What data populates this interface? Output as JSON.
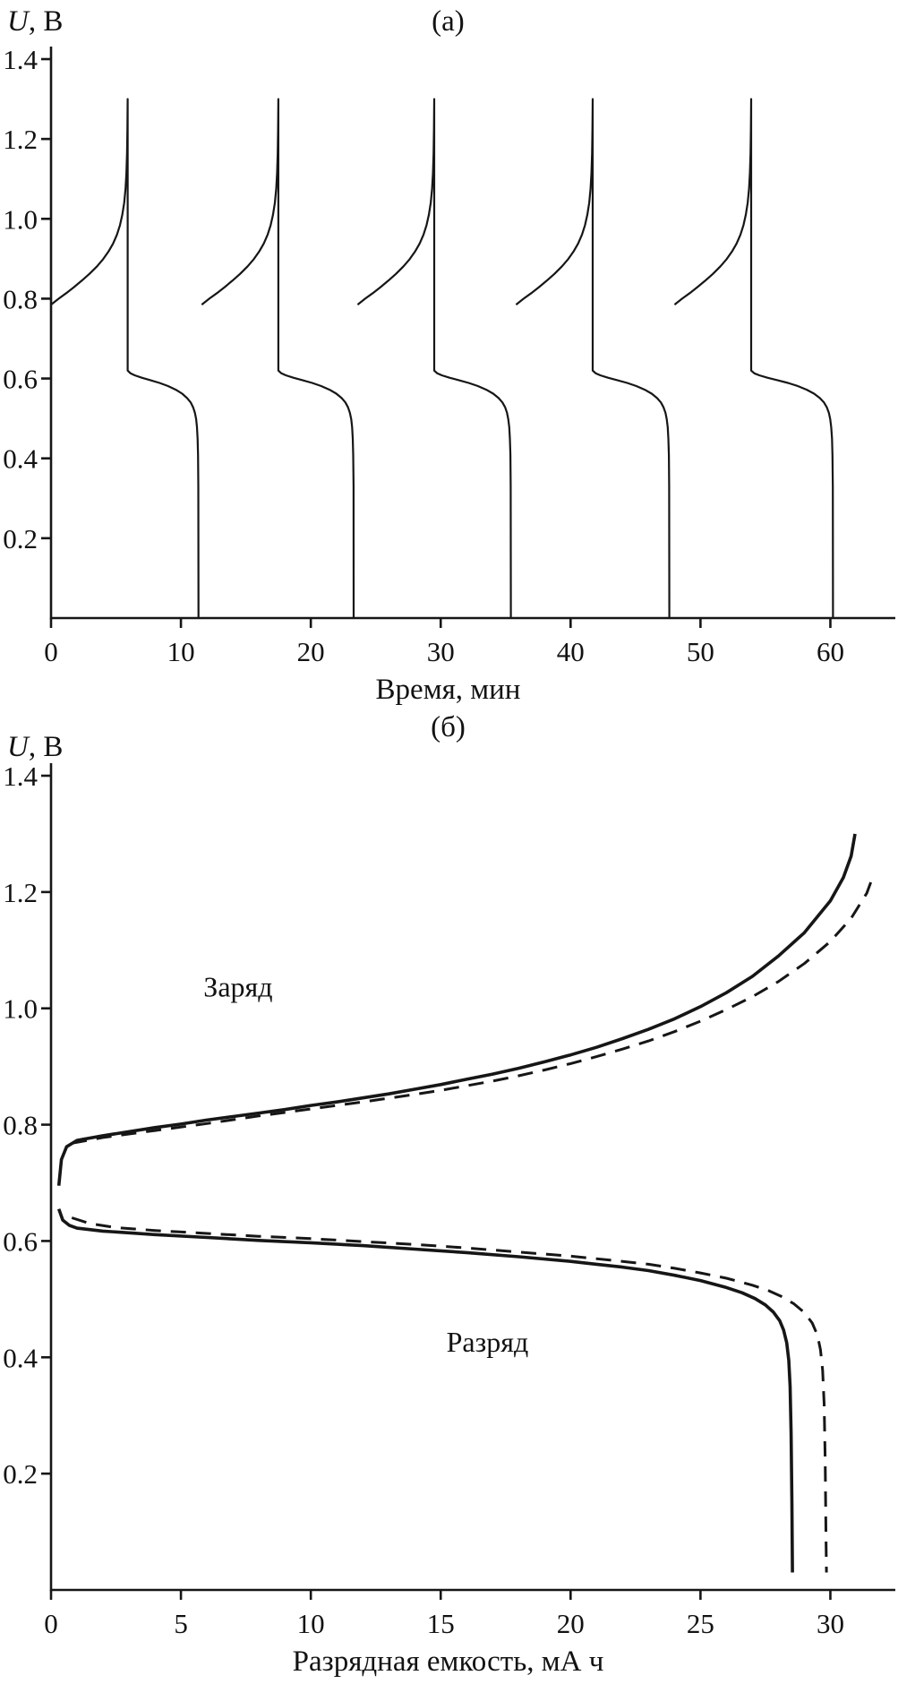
{
  "page": {
    "background": "#ffffff",
    "line_color": "#161616"
  },
  "chart_data": [
    {
      "id": "a",
      "type": "line",
      "title": "(а)",
      "ylabel_italic": "U",
      "ylabel_rest": ", В",
      "xlabel": "Время, мин",
      "x_ticks": [
        0,
        10,
        20,
        30,
        40,
        50,
        60
      ],
      "y_ticks": [
        0.2,
        0.4,
        0.6,
        0.8,
        1.0,
        1.2,
        1.4
      ],
      "xlim": [
        0,
        65
      ],
      "ylim": [
        0,
        1.4
      ],
      "legend": "none",
      "grid": false,
      "peak_voltage": 1.3,
      "cycles": [
        {
          "charge_start": 0.0,
          "peak": 5.9,
          "end": 11.35
        },
        {
          "charge_start": 11.6,
          "peak": 17.5,
          "end": 23.3
        },
        {
          "charge_start": 23.6,
          "peak": 29.5,
          "end": 35.4
        },
        {
          "charge_start": 35.8,
          "peak": 41.7,
          "end": 47.6
        },
        {
          "charge_start": 48.0,
          "peak": 53.9,
          "end": 60.2
        }
      ],
      "charge_profile": [
        [
          0.0,
          0.785
        ],
        [
          0.1,
          0.8
        ],
        [
          0.2,
          0.814
        ],
        [
          0.3,
          0.829
        ],
        [
          0.4,
          0.845
        ],
        [
          0.5,
          0.862
        ],
        [
          0.6,
          0.881
        ],
        [
          0.68,
          0.899
        ],
        [
          0.75,
          0.918
        ],
        [
          0.81,
          0.938
        ],
        [
          0.86,
          0.96
        ],
        [
          0.9,
          0.984
        ],
        [
          0.93,
          1.01
        ],
        [
          0.955,
          1.04
        ],
        [
          0.972,
          1.075
        ],
        [
          0.984,
          1.115
        ],
        [
          0.992,
          1.165
        ],
        [
          0.997,
          1.225
        ],
        [
          1.0,
          1.3
        ]
      ],
      "discharge_profile": [
        [
          0.0,
          0.62
        ],
        [
          0.04,
          0.613
        ],
        [
          0.1,
          0.608
        ],
        [
          0.2,
          0.602
        ],
        [
          0.32,
          0.596
        ],
        [
          0.45,
          0.589
        ],
        [
          0.57,
          0.581
        ],
        [
          0.68,
          0.572
        ],
        [
          0.77,
          0.562
        ],
        [
          0.84,
          0.551
        ],
        [
          0.89,
          0.54
        ],
        [
          0.925,
          0.528
        ],
        [
          0.95,
          0.514
        ],
        [
          0.967,
          0.498
        ],
        [
          0.979,
          0.478
        ],
        [
          0.988,
          0.45
        ],
        [
          0.994,
          0.408
        ],
        [
          0.998,
          0.33
        ],
        [
          1.0,
          0.0
        ]
      ]
    },
    {
      "id": "b",
      "type": "line",
      "title": "(б)",
      "ylabel_italic": "U",
      "ylabel_rest": ", В",
      "xlabel": "Разрядная емкость, мА ч",
      "x_ticks": [
        0,
        5,
        10,
        15,
        20,
        25,
        30
      ],
      "y_ticks": [
        0.2,
        0.4,
        0.6,
        0.8,
        1.0,
        1.2,
        1.4
      ],
      "xlim": [
        0,
        32.5
      ],
      "ylim": [
        0,
        1.4
      ],
      "legend": "none",
      "grid": false,
      "annotations": [
        {
          "text": "Заряд",
          "x": 7.2,
          "y": 1.02
        },
        {
          "text": "Разряд",
          "x": 16.8,
          "y": 0.41
        }
      ],
      "series": [
        {
          "name": "charge-solid",
          "style": "solid",
          "width": 3.6,
          "points": [
            [
              0.3,
              0.695
            ],
            [
              0.4,
              0.74
            ],
            [
              0.6,
              0.762
            ],
            [
              1,
              0.773
            ],
            [
              2,
              0.781
            ],
            [
              3,
              0.788
            ],
            [
              4,
              0.795
            ],
            [
              5,
              0.801
            ],
            [
              6,
              0.808
            ],
            [
              7,
              0.814
            ],
            [
              8,
              0.82
            ],
            [
              9,
              0.826
            ],
            [
              10,
              0.833
            ],
            [
              11,
              0.839
            ],
            [
              12,
              0.846
            ],
            [
              13,
              0.853
            ],
            [
              14,
              0.861
            ],
            [
              15,
              0.869
            ],
            [
              16,
              0.878
            ],
            [
              17,
              0.887
            ],
            [
              18,
              0.897
            ],
            [
              19,
              0.908
            ],
            [
              20,
              0.92
            ],
            [
              21,
              0.933
            ],
            [
              22,
              0.948
            ],
            [
              23,
              0.964
            ],
            [
              24,
              0.982
            ],
            [
              25,
              1.003
            ],
            [
              26,
              1.027
            ],
            [
              27,
              1.055
            ],
            [
              28,
              1.09
            ],
            [
              29,
              1.13
            ],
            [
              30,
              1.185
            ],
            [
              30.5,
              1.225
            ],
            [
              30.8,
              1.262
            ],
            [
              30.95,
              1.3
            ]
          ]
        },
        {
          "name": "charge-dashed",
          "style": "dashed",
          "width": 3,
          "points": [
            [
              0.8,
              0.768
            ],
            [
              2,
              0.778
            ],
            [
              4,
              0.79
            ],
            [
              6,
              0.802
            ],
            [
              8,
              0.815
            ],
            [
              10,
              0.827
            ],
            [
              12,
              0.839
            ],
            [
              14,
              0.852
            ],
            [
              15,
              0.859
            ],
            [
              16,
              0.867
            ],
            [
              17,
              0.875
            ],
            [
              18,
              0.884
            ],
            [
              19,
              0.894
            ],
            [
              20,
              0.905
            ],
            [
              21,
              0.917
            ],
            [
              22,
              0.93
            ],
            [
              23,
              0.944
            ],
            [
              24,
              0.96
            ],
            [
              25,
              0.978
            ],
            [
              26,
              0.998
            ],
            [
              27,
              1.02
            ],
            [
              28,
              1.046
            ],
            [
              29,
              1.077
            ],
            [
              30,
              1.115
            ],
            [
              30.8,
              1.155
            ],
            [
              31.4,
              1.198
            ],
            [
              31.6,
              1.222
            ]
          ]
        },
        {
          "name": "discharge-solid",
          "style": "solid",
          "width": 3.6,
          "points": [
            [
              0.3,
              0.655
            ],
            [
              0.45,
              0.636
            ],
            [
              0.7,
              0.627
            ],
            [
              1,
              0.622
            ],
            [
              2,
              0.617
            ],
            [
              3,
              0.614
            ],
            [
              4,
              0.611
            ],
            [
              6,
              0.606
            ],
            [
              8,
              0.601
            ],
            [
              10,
              0.597
            ],
            [
              12,
              0.592
            ],
            [
              14,
              0.586
            ],
            [
              16,
              0.58
            ],
            [
              18,
              0.573
            ],
            [
              20,
              0.565
            ],
            [
              21,
              0.56
            ],
            [
              22,
              0.555
            ],
            [
              23,
              0.549
            ],
            [
              24,
              0.541
            ],
            [
              25,
              0.532
            ],
            [
              26,
              0.52
            ],
            [
              26.6,
              0.511
            ],
            [
              27.1,
              0.501
            ],
            [
              27.5,
              0.49
            ],
            [
              27.8,
              0.478
            ],
            [
              28.05,
              0.463
            ],
            [
              28.2,
              0.447
            ],
            [
              28.32,
              0.425
            ],
            [
              28.4,
              0.395
            ],
            [
              28.45,
              0.35
            ],
            [
              28.49,
              0.27
            ],
            [
              28.52,
              0.15
            ],
            [
              28.54,
              0.03
            ]
          ]
        },
        {
          "name": "discharge-dashed",
          "style": "dashed",
          "width": 3,
          "points": [
            [
              0.8,
              0.64
            ],
            [
              1.5,
              0.63
            ],
            [
              2.5,
              0.623
            ],
            [
              4,
              0.618
            ],
            [
              6,
              0.613
            ],
            [
              8,
              0.608
            ],
            [
              10,
              0.604
            ],
            [
              12,
              0.599
            ],
            [
              14,
              0.594
            ],
            [
              16,
              0.588
            ],
            [
              18,
              0.581
            ],
            [
              20,
              0.574
            ],
            [
              22,
              0.565
            ],
            [
              23,
              0.56
            ],
            [
              24,
              0.553
            ],
            [
              25,
              0.545
            ],
            [
              26,
              0.536
            ],
            [
              27,
              0.524
            ],
            [
              27.6,
              0.515
            ],
            [
              28.1,
              0.505
            ],
            [
              28.6,
              0.492
            ],
            [
              29.0,
              0.477
            ],
            [
              29.3,
              0.459
            ],
            [
              29.5,
              0.438
            ],
            [
              29.62,
              0.413
            ],
            [
              29.7,
              0.378
            ],
            [
              29.76,
              0.32
            ],
            [
              29.8,
              0.22
            ],
            [
              29.83,
              0.1
            ],
            [
              29.85,
              0.03
            ]
          ]
        }
      ]
    }
  ]
}
